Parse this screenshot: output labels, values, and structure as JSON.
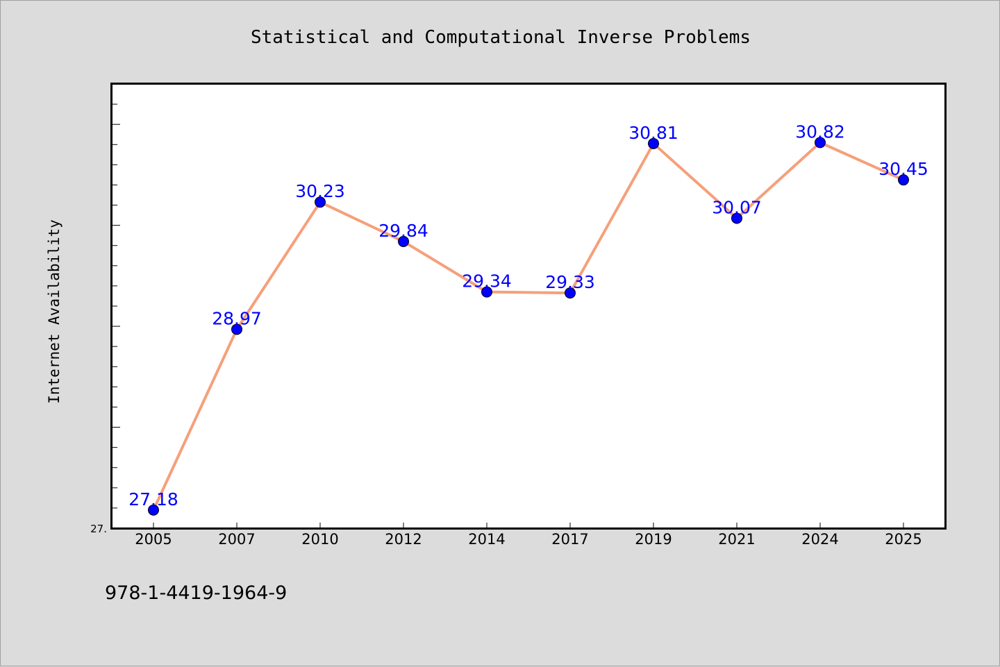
{
  "chart_data": {
    "type": "line",
    "title": "Statistical and Computational Inverse Problems",
    "xlabel": "",
    "ylabel": "Internet Availability",
    "categories": [
      "2005",
      "2007",
      "2010",
      "2012",
      "2014",
      "2017",
      "2019",
      "2021",
      "2024",
      "2025"
    ],
    "series": [
      {
        "values": [
          27.18,
          28.97,
          30.23,
          29.84,
          29.34,
          29.33,
          30.81,
          30.07,
          30.82,
          30.45
        ],
        "labels": [
          "27.18",
          "28.97",
          "30.23",
          "29.84",
          "29.34",
          "29.33",
          "30.81",
          "30.07",
          "30.82",
          "30.45"
        ]
      }
    ],
    "ylim": [
      27.0,
      31.4
    ],
    "y_tick_label": "27.",
    "grid": false,
    "legend": "none",
    "line_color": "#f5a07a",
    "marker_color": "#0000ff",
    "label_color": "#0000ff",
    "plot_background": "#ffffff",
    "figure_background": "#dcdcdc"
  },
  "footer": {
    "isbn": "978-1-4419-1964-9"
  }
}
